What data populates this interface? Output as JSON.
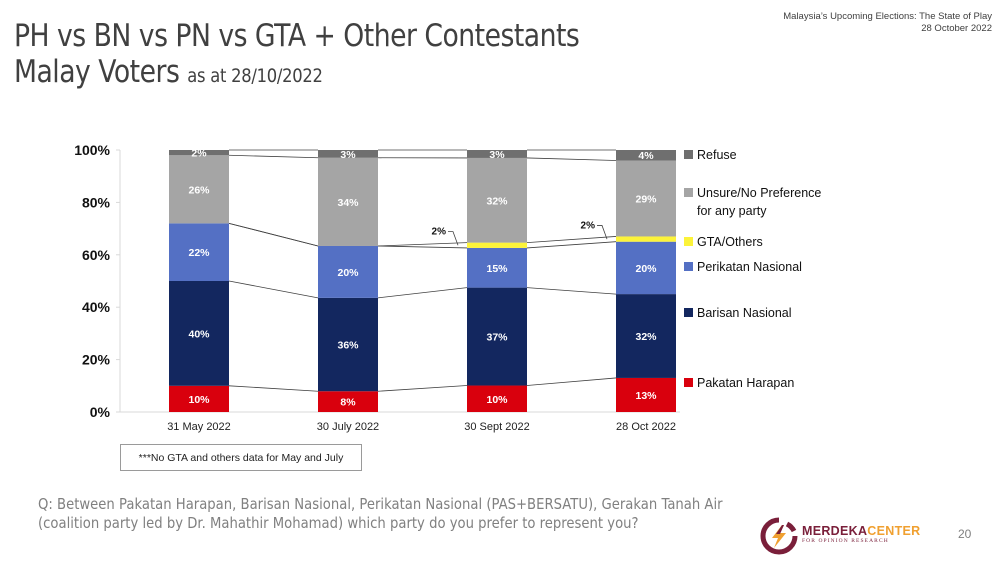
{
  "header": {
    "title_line1": "PH vs BN vs PN vs GTA + Other Contestants",
    "title_line2": "Malay Voters",
    "title_sub": "as at 28/10/2022",
    "report_title": "Malaysia’s Upcoming Elections: The State of Play",
    "report_date": "28 October 2022"
  },
  "note": "***No GTA and others data for May and July",
  "question_line1": "Q: Between Pakatan Harapan, Barisan Nasional, Perikatan Nasional (PAS+BERSATU), Gerakan Tanah Air",
  "question_line2": "(coalition party led by Dr. Mahathir Mohamad) which party do you prefer to represent you?",
  "logo": {
    "icon": "lightning-circle-icon",
    "name_part1": "MERDEKA",
    "name_part2": "CENTER",
    "tagline": "FOR OPINION RESEARCH",
    "color_primary": "#7a1f3a",
    "color_accent": "#f0a030"
  },
  "page_number": "20",
  "chart_data": {
    "type": "bar",
    "stacked": true,
    "title": "",
    "xlabel": "",
    "ylabel": "",
    "ylim": [
      0,
      100
    ],
    "yticks": [
      "0%",
      "20%",
      "40%",
      "60%",
      "80%",
      "100%"
    ],
    "categories": [
      "31 May 2022",
      "30 July 2022",
      "30 Sept 2022",
      "28 Oct 2022"
    ],
    "series": [
      {
        "name": "Pakatan Harapan",
        "color": "#d9000d",
        "values": [
          10,
          8,
          10,
          13
        ],
        "labels": [
          "10%",
          "8%",
          "10%",
          "13%"
        ]
      },
      {
        "name": "Barisan Nasional",
        "color": "#13275f",
        "values": [
          40,
          36,
          37,
          32
        ],
        "labels": [
          "40%",
          "36%",
          "37%",
          "32%"
        ]
      },
      {
        "name": "Perikatan Nasional",
        "color": "#5470c4",
        "values": [
          22,
          20,
          15,
          20
        ],
        "labels": [
          "22%",
          "20%",
          "15%",
          "20%"
        ]
      },
      {
        "name": "GTA/Others",
        "color": "#fcf33a",
        "values": [
          0,
          0,
          2,
          2
        ],
        "labels": [
          "",
          "",
          "2%",
          "2%"
        ]
      },
      {
        "name": "Unsure/No Preference for any party",
        "color": "#a5a5a5",
        "values": [
          26,
          34,
          32,
          29
        ],
        "labels": [
          "26%",
          "34%",
          "32%",
          "29%"
        ]
      },
      {
        "name": "Refuse",
        "color": "#6f6f6f",
        "values": [
          2,
          3,
          3,
          4
        ],
        "labels": [
          "2%",
          "3%",
          "3%",
          "4%"
        ]
      }
    ],
    "legend": {
      "placement": "right",
      "order": [
        "Refuse",
        "Unsure/No Preference for any party",
        "GTA/Others",
        "Perikatan Nasional",
        "Barisan Nasional",
        "Pakatan Harapan"
      ],
      "display_lines": {
        "Unsure/No Preference for any party": [
          "Unsure/No Preference",
          "for any party"
        ]
      }
    },
    "series_lines": true,
    "grid": false
  }
}
